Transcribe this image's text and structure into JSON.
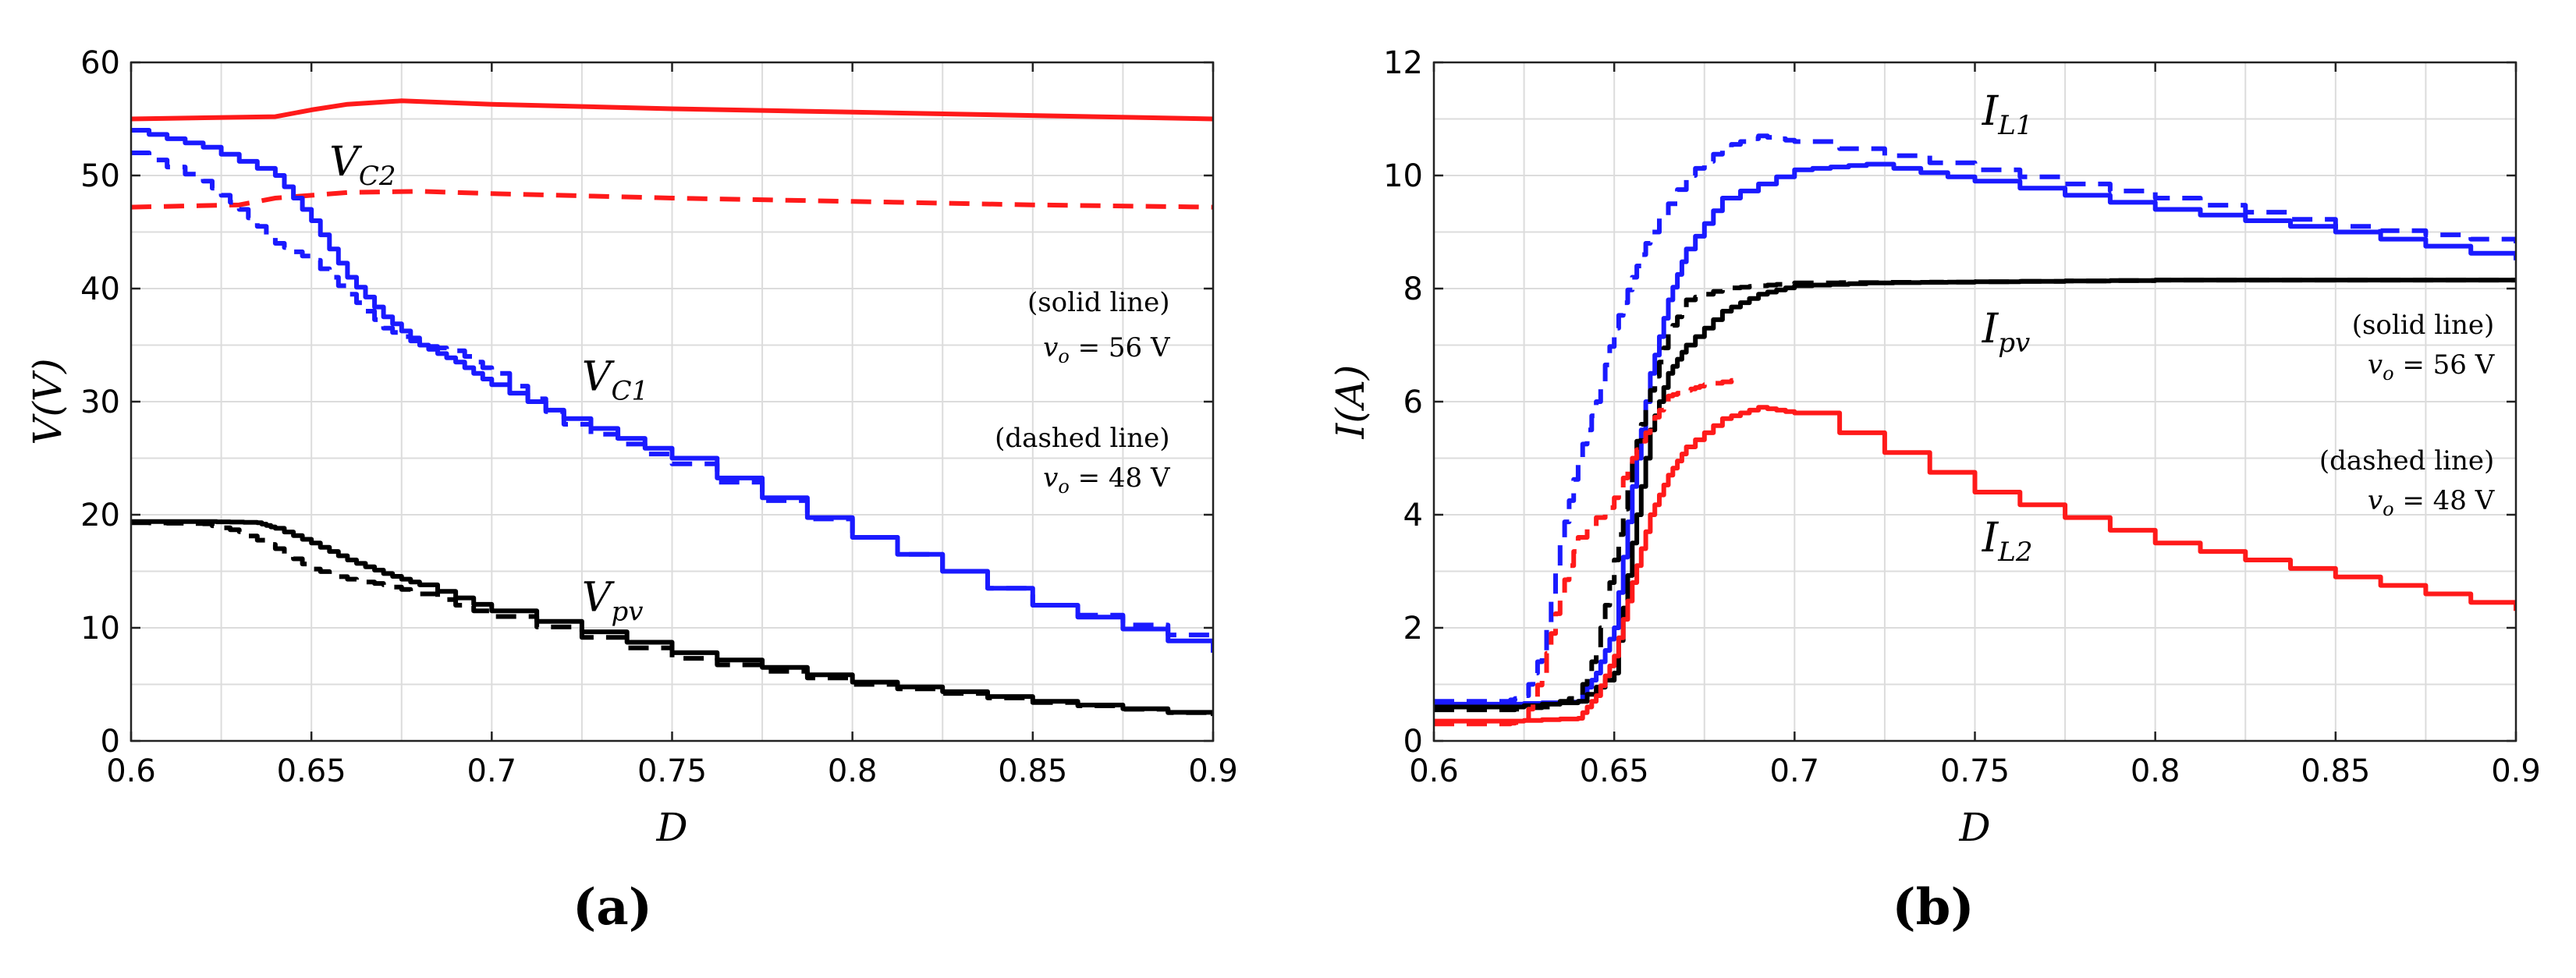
{
  "chart_data": [
    {
      "id": "a",
      "type": "line",
      "panel_label": "(a)",
      "xlabel": "D",
      "ylabel": "V(V)",
      "xlim": [
        0.6,
        0.9
      ],
      "ylim": [
        0,
        60
      ],
      "xticks": [
        "0.6",
        "0.65",
        "0.7",
        "0.75",
        "0.8",
        "0.85",
        "0.9"
      ],
      "yticks": [
        "0",
        "10",
        "20",
        "30",
        "40",
        "50",
        "60"
      ],
      "grid": true,
      "curve_labels": [
        {
          "main": "V",
          "sub": "C2",
          "x": 0.655,
          "y": 50
        },
        {
          "main": "V",
          "sub": "C1",
          "x": 0.725,
          "y": 31
        },
        {
          "main": "V",
          "sub": "pv",
          "x": 0.725,
          "y": 11.5
        }
      ],
      "annotations": [
        {
          "line1": "(solid line)",
          "var": "v",
          "sub": "o",
          "eq": " = 56 V",
          "x": 0.888,
          "y": 38,
          "y2": 34
        },
        {
          "line1": "(dashed line)",
          "var": "v",
          "sub": "o",
          "eq": " = 48 V",
          "x": 0.888,
          "y": 26,
          "y2": 22.5
        }
      ],
      "series": [
        {
          "name": "VC2, vo = 56 V",
          "color": "#ff1a1a",
          "dash": false,
          "x": [
            0.6,
            0.64,
            0.65,
            0.66,
            0.675,
            0.7,
            0.75,
            0.8,
            0.85,
            0.9
          ],
          "y": [
            55,
            55.2,
            55.8,
            56.3,
            56.6,
            56.3,
            55.9,
            55.6,
            55.3,
            55
          ]
        },
        {
          "name": "VC2, vo = 48 V",
          "color": "#ff1a1a",
          "dash": true,
          "x": [
            0.6,
            0.63,
            0.64,
            0.66,
            0.68,
            0.7,
            0.75,
            0.8,
            0.85,
            0.9
          ],
          "y": [
            47.2,
            47.4,
            48,
            48.5,
            48.6,
            48.4,
            48,
            47.7,
            47.4,
            47.2
          ]
        },
        {
          "name": "VC1, vo = 56 V",
          "color": "#1a1aff",
          "dash": false,
          "step": true,
          "x": [
            0.6,
            0.62,
            0.64,
            0.65,
            0.66,
            0.67,
            0.68,
            0.69,
            0.7,
            0.72,
            0.75,
            0.8,
            0.85,
            0.9
          ],
          "y": [
            54,
            52.5,
            50,
            46,
            41,
            37.5,
            35,
            33.5,
            31.5,
            28.5,
            25,
            18,
            12,
            7.8
          ]
        },
        {
          "name": "VC1, vo = 48 V",
          "color": "#1a1aff",
          "dash": true,
          "step": true,
          "x": [
            0.6,
            0.62,
            0.63,
            0.64,
            0.65,
            0.66,
            0.67,
            0.68,
            0.69,
            0.7,
            0.72,
            0.75,
            0.8,
            0.85,
            0.9
          ],
          "y": [
            52,
            49.5,
            47,
            44,
            42.5,
            39.5,
            36.5,
            35,
            34.5,
            32.5,
            28,
            24.5,
            18,
            12,
            8.5
          ]
        },
        {
          "name": "Vpv, vo = 56 V",
          "color": "#000000",
          "dash": false,
          "step": true,
          "x": [
            0.6,
            0.62,
            0.635,
            0.64,
            0.65,
            0.66,
            0.67,
            0.68,
            0.7,
            0.75,
            0.8,
            0.85,
            0.9
          ],
          "y": [
            19.4,
            19.4,
            19.3,
            18.8,
            17.5,
            16,
            14.8,
            13.8,
            11.5,
            7.8,
            5.2,
            3.5,
            2.2
          ]
        },
        {
          "name": "Vpv, vo = 48 V",
          "color": "#000000",
          "dash": true,
          "step": true,
          "x": [
            0.6,
            0.62,
            0.63,
            0.64,
            0.65,
            0.66,
            0.67,
            0.68,
            0.7,
            0.75,
            0.8,
            0.85,
            0.9
          ],
          "y": [
            19.3,
            19.2,
            18.5,
            17,
            15.2,
            14.3,
            13.8,
            13,
            11,
            7.3,
            5,
            3.4,
            2.2
          ]
        }
      ]
    },
    {
      "id": "b",
      "type": "line",
      "panel_label": "(b)",
      "xlabel": "D",
      "ylabel": "I(A)",
      "xlim": [
        0.6,
        0.9
      ],
      "ylim": [
        0,
        12
      ],
      "xticks": [
        "0.6",
        "0.65",
        "0.7",
        "0.75",
        "0.8",
        "0.85",
        "0.9"
      ],
      "yticks": [
        "0",
        "2",
        "4",
        "6",
        "8",
        "10",
        "12"
      ],
      "grid": true,
      "curve_labels": [
        {
          "main": "I",
          "sub": "L1",
          "x": 0.752,
          "y": 10.9
        },
        {
          "main": "I",
          "sub": "pv",
          "x": 0.752,
          "y": 7.05
        },
        {
          "main": "I",
          "sub": "L2",
          "x": 0.752,
          "y": 3.35
        }
      ],
      "annotations": [
        {
          "line1": "(solid line)",
          "var": "v",
          "sub": "o",
          "eq": " = 56 V",
          "x": 0.894,
          "y": 7.2,
          "y2": 6.5
        },
        {
          "line1": "(dashed line)",
          "var": "v",
          "sub": "o",
          "eq": " = 48 V",
          "x": 0.894,
          "y": 4.8,
          "y2": 4.1
        }
      ],
      "series": [
        {
          "name": "IL1, vo = 48 V",
          "color": "#1a1aff",
          "dash": true,
          "step": true,
          "x": [
            0.6,
            0.62,
            0.625,
            0.63,
            0.635,
            0.64,
            0.645,
            0.65,
            0.655,
            0.66,
            0.67,
            0.68,
            0.69,
            0.7,
            0.75,
            0.8,
            0.85,
            0.9
          ],
          "y": [
            0.7,
            0.7,
            0.8,
            1.6,
            3.5,
            5,
            6,
            7.3,
            8.2,
            9,
            10,
            10.5,
            10.7,
            10.6,
            10.1,
            9.6,
            9.1,
            8.8
          ]
        },
        {
          "name": "IL1, vo = 56 V",
          "color": "#1a1aff",
          "dash": false,
          "step": true,
          "x": [
            0.6,
            0.62,
            0.64,
            0.645,
            0.65,
            0.655,
            0.66,
            0.665,
            0.67,
            0.68,
            0.7,
            0.72,
            0.75,
            0.8,
            0.85,
            0.9
          ],
          "y": [
            0.65,
            0.65,
            0.7,
            1.2,
            2,
            4.5,
            6.5,
            7.8,
            8.7,
            9.6,
            10.1,
            10.2,
            9.9,
            9.4,
            9,
            8.5
          ]
        },
        {
          "name": "Ipv, vo = 48 V",
          "color": "#000000",
          "dash": true,
          "step": true,
          "x": [
            0.6,
            0.62,
            0.63,
            0.64,
            0.645,
            0.65,
            0.655,
            0.66,
            0.665,
            0.67,
            0.68,
            0.69,
            0.7,
            0.75,
            0.8,
            0.85,
            0.9
          ],
          "y": [
            0.55,
            0.55,
            0.6,
            0.8,
            1.6,
            3.2,
            5,
            6.2,
            7.2,
            7.8,
            8,
            8.05,
            8.1,
            8.12,
            8.15,
            8.15,
            8.15
          ]
        },
        {
          "name": "Ipv, vo = 56 V",
          "color": "#000000",
          "dash": false,
          "step": true,
          "x": [
            0.6,
            0.62,
            0.64,
            0.65,
            0.655,
            0.66,
            0.665,
            0.67,
            0.68,
            0.69,
            0.7,
            0.72,
            0.75,
            0.8,
            0.85,
            0.9
          ],
          "y": [
            0.6,
            0.6,
            0.7,
            1.2,
            3.5,
            5.5,
            6.5,
            7,
            7.6,
            7.9,
            8.05,
            8.1,
            8.12,
            8.15,
            8.15,
            8.15
          ]
        },
        {
          "name": "IL2, vo = 48 V",
          "color": "#ff1a1a",
          "dash": true,
          "step": true,
          "x": [
            0.6,
            0.62,
            0.625,
            0.63,
            0.635,
            0.64,
            0.65,
            0.655,
            0.66,
            0.665,
            0.67,
            0.675,
            0.685
          ],
          "y": [
            0.3,
            0.3,
            0.35,
            1.2,
            2.6,
            3.6,
            4.3,
            5,
            5.6,
            6.1,
            6.2,
            6.3,
            6.4
          ]
        },
        {
          "name": "IL2, vo = 56 V",
          "color": "#ff1a1a",
          "dash": false,
          "step": true,
          "x": [
            0.6,
            0.62,
            0.64,
            0.645,
            0.65,
            0.655,
            0.66,
            0.665,
            0.67,
            0.68,
            0.69,
            0.7,
            0.75,
            0.8,
            0.85,
            0.9
          ],
          "y": [
            0.35,
            0.35,
            0.4,
            0.8,
            1.5,
            2.8,
            4,
            4.7,
            5.2,
            5.7,
            5.9,
            5.8,
            4.4,
            3.5,
            2.9,
            2.3
          ]
        }
      ]
    }
  ]
}
